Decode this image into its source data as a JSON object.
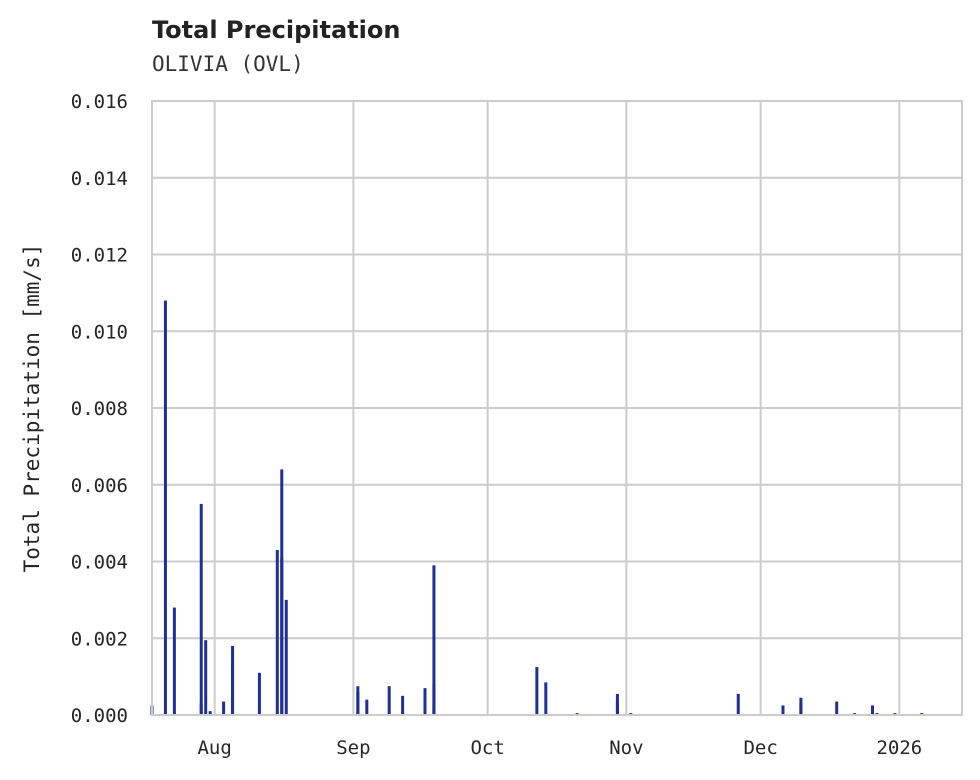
{
  "header": {
    "title": "Total Precipitation",
    "subtitle": "OLIVIA (OVL)"
  },
  "axes": {
    "ylabel": "Total Precipitation [mm/s]",
    "yticks": [
      "0.000",
      "0.002",
      "0.004",
      "0.006",
      "0.008",
      "0.010",
      "0.012",
      "0.014",
      "0.016"
    ],
    "xticks": [
      "Aug",
      "Sep",
      "Oct",
      "Nov",
      "Dec",
      "2026"
    ]
  },
  "colors": {
    "bar": "#1f2f96",
    "grid": "#cccccc",
    "frame": "#cccccc"
  },
  "chart_data": {
    "type": "bar",
    "title": "Total Precipitation",
    "subtitle": "OLIVIA (OVL)",
    "xlabel": "",
    "ylabel": "Total Precipitation [mm/s]",
    "ylim": [
      0,
      0.016
    ],
    "xlim": [
      "2025-07-18",
      "2026-01-15"
    ],
    "grid": true,
    "legend": null,
    "x_tick_labels": [
      "Aug",
      "Sep",
      "Oct",
      "Nov",
      "Dec",
      "2026"
    ],
    "y_tick_labels": [
      "0.000",
      "0.002",
      "0.004",
      "0.006",
      "0.008",
      "0.010",
      "0.012",
      "0.014",
      "0.016"
    ],
    "series": [
      {
        "name": "Total Precipitation",
        "x": [
          "2025-07-18",
          "2025-07-21",
          "2025-07-23",
          "2025-07-29",
          "2025-07-29",
          "2025-07-30",
          "2025-07-31",
          "2025-08-03",
          "2025-08-05",
          "2025-08-05",
          "2025-08-11",
          "2025-08-15",
          "2025-08-16",
          "2025-08-16",
          "2025-08-17",
          "2025-09-02",
          "2025-09-02",
          "2025-09-04",
          "2025-09-09",
          "2025-09-12",
          "2025-09-17",
          "2025-09-19",
          "2025-09-19",
          "2025-09-19",
          "2025-10-12",
          "2025-10-14",
          "2025-10-21",
          "2025-10-30",
          "2025-10-30",
          "2025-11-02",
          "2025-11-26",
          "2025-12-06",
          "2025-12-10",
          "2025-12-10",
          "2025-12-18",
          "2025-12-22",
          "2025-12-26",
          "2025-12-27",
          "2025-12-31",
          "2026-01-06"
        ],
        "values": [
          0.00025,
          0.0108,
          0.0028,
          0.0055,
          0.0003,
          0.00195,
          0.0001,
          0.00035,
          0.0018,
          0.0013,
          0.0011,
          0.0043,
          0.0064,
          0.0041,
          0.003,
          0.00075,
          0.0006,
          0.0004,
          0.00075,
          0.0005,
          0.0007,
          0.0039,
          0.0008,
          0.00025,
          0.00125,
          0.00085,
          5e-05,
          0.00055,
          0.00035,
          5e-05,
          0.00055,
          0.00025,
          0.00045,
          0.0003,
          0.00035,
          5e-05,
          0.00025,
          5e-05,
          5e-05,
          5e-05
        ]
      }
    ]
  }
}
